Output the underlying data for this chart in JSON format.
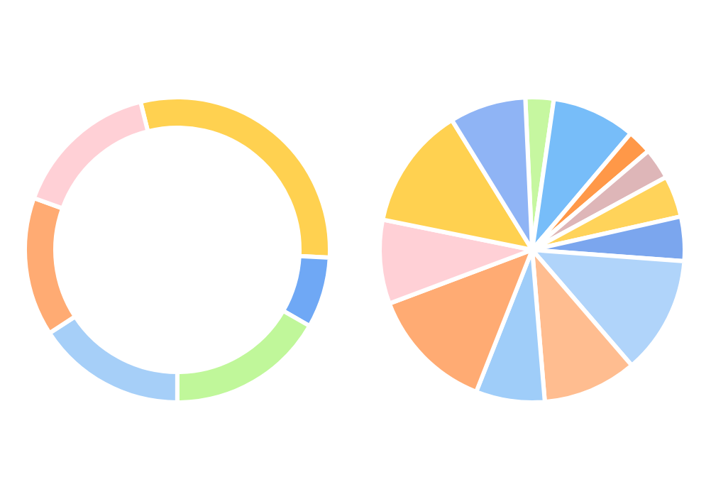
{
  "chart_data": [
    {
      "type": "donut",
      "categories": [
        null,
        null,
        null,
        null,
        null,
        null
      ],
      "values": [
        29.7,
        7.5,
        16.7,
        15.8,
        14.7,
        15.6
      ],
      "colors": [
        "#ffd150",
        "#6fa8f5",
        "#c0f79a",
        "#a6cff8",
        "#ffab73",
        "#ffd0d6"
      ]
    },
    {
      "type": "pie",
      "categories": [
        null,
        null,
        null,
        null,
        null,
        null,
        null,
        null,
        null,
        null,
        null,
        null,
        null
      ],
      "values": [
        3,
        8.9,
        2.6,
        3.3,
        4.4,
        4.7,
        12.5,
        10,
        7.3,
        13.3,
        8.9,
        13,
        8.1
      ],
      "colors": [
        "#c6f7a0",
        "#77bdf9",
        "#ff9848",
        "#deb6b8",
        "#ffd35a",
        "#7ba6ee",
        "#b0d4fa",
        "#ffbd90",
        "#9fcdf9",
        "#ffab73",
        "#ffd0d6",
        "#ffd150",
        "#8fb4f5"
      ]
    }
  ]
}
